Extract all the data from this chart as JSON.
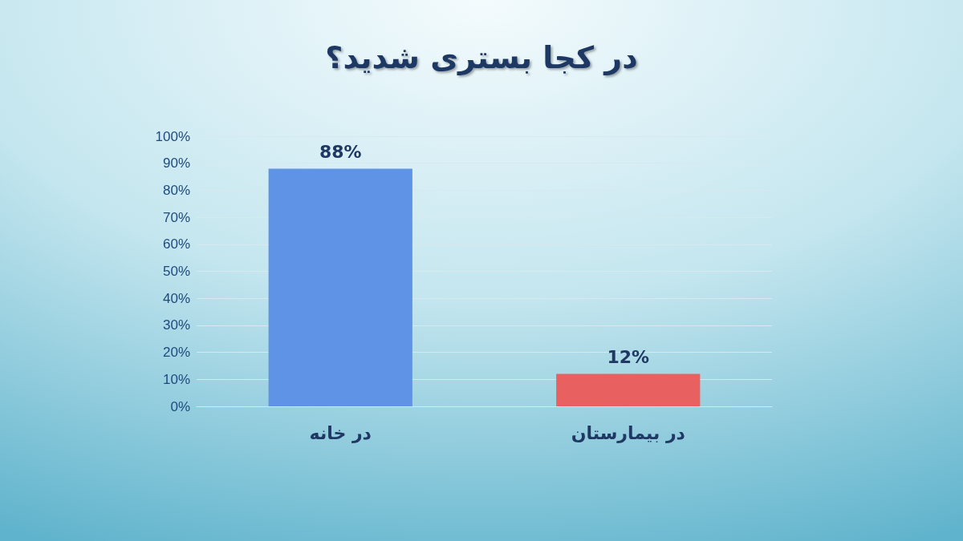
{
  "chart_data": {
    "type": "bar",
    "title": "در کجا بستری شدید؟",
    "categories": [
      "در خانه",
      "در بیمارستان"
    ],
    "values": [
      88,
      12
    ],
    "colors": [
      "#5f93e6",
      "#e8605f"
    ],
    "value_labels": [
      "88%",
      "12%"
    ],
    "ylim": [
      0,
      100
    ],
    "yticks": [
      {
        "value": 0,
        "label": "0%"
      },
      {
        "value": 10,
        "label": "10%"
      },
      {
        "value": 20,
        "label": "20%"
      },
      {
        "value": 30,
        "label": "30%"
      },
      {
        "value": 40,
        "label": "40%"
      },
      {
        "value": 50,
        "label": "50%"
      },
      {
        "value": 60,
        "label": "60%"
      },
      {
        "value": 70,
        "label": "70%"
      },
      {
        "value": 80,
        "label": "80%"
      },
      {
        "value": 90,
        "label": "90%"
      },
      {
        "value": 100,
        "label": "100%"
      }
    ],
    "grid": "y"
  }
}
